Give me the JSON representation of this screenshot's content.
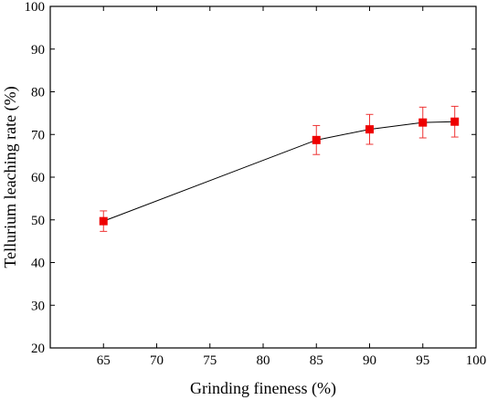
{
  "chart_data": {
    "type": "scatter",
    "title": "",
    "xlabel": "Grinding fineness (%)",
    "ylabel": "Tellurium leaching rate (%)",
    "xlim": [
      60,
      100
    ],
    "ylim": [
      20,
      100
    ],
    "xticks": [
      65,
      70,
      75,
      80,
      85,
      90,
      95,
      100
    ],
    "yticks": [
      20,
      30,
      40,
      50,
      60,
      70,
      80,
      90,
      100
    ],
    "grid": false,
    "legend": "none",
    "series": [
      {
        "x": [
          65,
          85,
          90,
          95,
          98
        ],
        "y": [
          49.7,
          68.7,
          71.2,
          72.8,
          73.0
        ],
        "error": [
          2.4,
          3.4,
          3.5,
          3.6,
          3.6
        ],
        "marker": "square",
        "marker_color": "#ee0000",
        "errorbar_color": "#ee3333",
        "line_color": "#000000"
      }
    ]
  }
}
